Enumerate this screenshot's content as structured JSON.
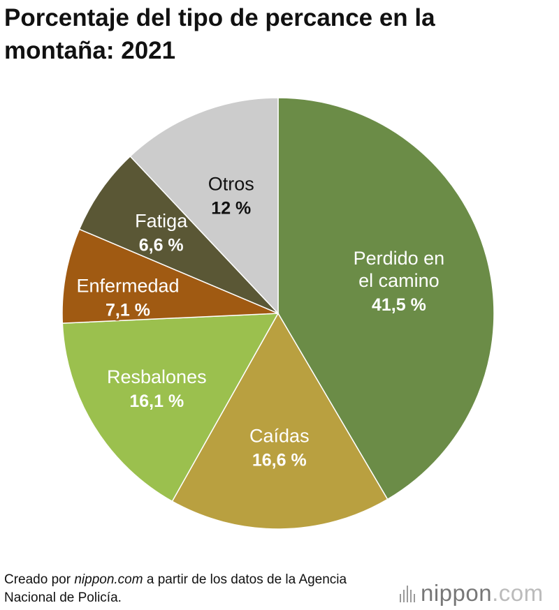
{
  "title": "Porcentaje del tipo de percance en la montaña: 2021",
  "chart_data": {
    "type": "pie",
    "title": "Porcentaje del tipo de percance en la montaña: 2021",
    "slices": [
      {
        "label_lines": [
          "Perdido en",
          "el camino"
        ],
        "value": 41.5,
        "value_label": "41,5 %",
        "color": "#6b8c47",
        "label_dark": false
      },
      {
        "label_lines": [
          "Caídas"
        ],
        "value": 16.6,
        "value_label": "16,6 %",
        "color": "#b9a040",
        "label_dark": false
      },
      {
        "label_lines": [
          "Resbalones"
        ],
        "value": 16.1,
        "value_label": "16,1 %",
        "color": "#9bc04e",
        "label_dark": false
      },
      {
        "label_lines": [
          "Enfermedad"
        ],
        "value": 7.1,
        "value_label": "7,1 %",
        "color": "#a05a12",
        "label_dark": false
      },
      {
        "label_lines": [
          "Fatiga"
        ],
        "value": 6.6,
        "value_label": "6,6 %",
        "color": "#5a5735",
        "label_dark": false
      },
      {
        "label_lines": [
          "Otros"
        ],
        "value": 12,
        "value_label": "12 %",
        "color": "#cccccc",
        "label_dark": true
      }
    ],
    "start_angle_deg": 0,
    "direction": "clockwise"
  },
  "footer": {
    "prefix": "Creado por ",
    "source": "nippon.com",
    "suffix": " a partir de los datos de la Agencia Nacional de Policía."
  },
  "brand": {
    "name": "nippon",
    "suffix": ".com",
    "name_color": "#777777",
    "suffix_color": "#bbbbbb"
  }
}
